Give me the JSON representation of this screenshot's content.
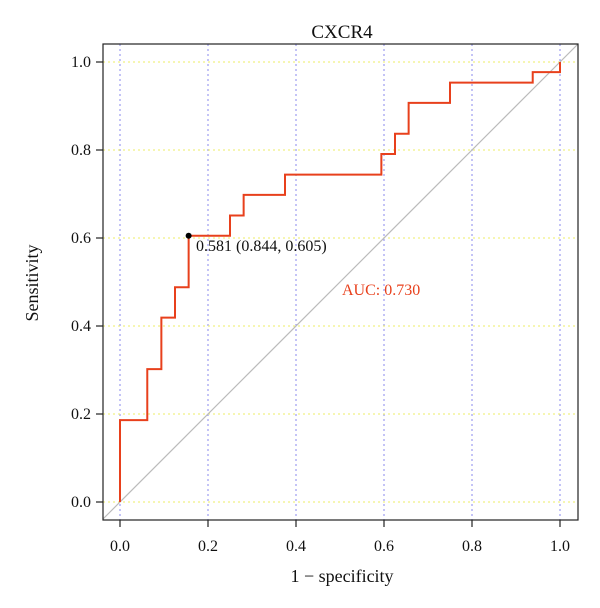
{
  "chart_data": {
    "type": "line",
    "title": "CXCR4",
    "xlabel": "1 − specificity",
    "ylabel": "Sensitivity",
    "xlim": [
      0,
      1
    ],
    "ylim": [
      0,
      1
    ],
    "x_ticks": [
      "0.0",
      "0.2",
      "0.4",
      "0.6",
      "0.8",
      "1.0"
    ],
    "y_ticks": [
      "0.0",
      "0.2",
      "0.4",
      "0.6",
      "0.8",
      "1.0"
    ],
    "grid": true,
    "series": [
      {
        "color": "#e8401c",
        "x": [
          0,
          0,
          0.062,
          0.062,
          0.094,
          0.094,
          0.125,
          0.125,
          0.156,
          0.156,
          0.25,
          0.25,
          0.281,
          0.281,
          0.375,
          0.375,
          0.594,
          0.594,
          0.625,
          0.625,
          0.656,
          0.656,
          0.75,
          0.75,
          0.938,
          0.938,
          1.0,
          1.0
        ],
        "y": [
          0,
          0.186,
          0.186,
          0.302,
          0.302,
          0.419,
          0.419,
          0.488,
          0.488,
          0.605,
          0.605,
          0.651,
          0.651,
          0.698,
          0.698,
          0.744,
          0.744,
          0.791,
          0.791,
          0.837,
          0.837,
          0.907,
          0.907,
          0.953,
          0.953,
          0.977,
          0.977,
          1.0
        ]
      }
    ],
    "reference_line": {
      "x": [
        0,
        1
      ],
      "y": [
        0,
        1
      ],
      "color": "#bbbbbb"
    },
    "threshold_point": {
      "x": 0.156,
      "y": 0.605,
      "label": "0.581 (0.844, 0.605)"
    },
    "auc_label": {
      "text": "AUC: 0.730",
      "color": "#e8401c"
    },
    "grid_colors": {
      "vertical": "#8888ee",
      "horizontal": "#eeee66"
    }
  }
}
